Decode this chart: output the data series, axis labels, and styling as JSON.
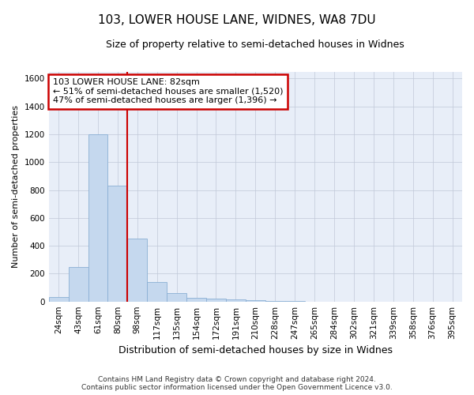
{
  "title": "103, LOWER HOUSE LANE, WIDNES, WA8 7DU",
  "subtitle": "Size of property relative to semi-detached houses in Widnes",
  "xlabel": "Distribution of semi-detached houses by size in Widnes",
  "ylabel": "Number of semi-detached properties",
  "bar_color": "#c5d8ee",
  "bar_edge_color": "#8aafd4",
  "background_color": "#e8eef8",
  "categories": [
    "24sqm",
    "43sqm",
    "61sqm",
    "80sqm",
    "98sqm",
    "117sqm",
    "135sqm",
    "154sqm",
    "172sqm",
    "191sqm",
    "210sqm",
    "228sqm",
    "247sqm",
    "265sqm",
    "284sqm",
    "302sqm",
    "321sqm",
    "339sqm",
    "358sqm",
    "376sqm",
    "395sqm"
  ],
  "values": [
    30,
    250,
    1200,
    830,
    450,
    140,
    60,
    25,
    20,
    15,
    10,
    2,
    2,
    1,
    1,
    0,
    0,
    0,
    0,
    0,
    0
  ],
  "ylim": [
    0,
    1650
  ],
  "yticks": [
    0,
    200,
    400,
    600,
    800,
    1000,
    1200,
    1400,
    1600
  ],
  "annotation_text_line1": "103 LOWER HOUSE LANE: 82sqm",
  "annotation_text_line2": "← 51% of semi-detached houses are smaller (1,520)",
  "annotation_text_line3": "47% of semi-detached houses are larger (1,396) →",
  "annotation_box_color": "#ffffff",
  "annotation_box_edge_color": "#cc0000",
  "vline_color": "#cc0000",
  "vline_x": 3.5,
  "footer_line1": "Contains HM Land Registry data © Crown copyright and database right 2024.",
  "footer_line2": "Contains public sector information licensed under the Open Government Licence v3.0.",
  "grid_color": "#c0c8d8",
  "title_fontsize": 11,
  "subtitle_fontsize": 9,
  "ylabel_fontsize": 8,
  "xlabel_fontsize": 9,
  "tick_fontsize": 7.5,
  "footer_fontsize": 6.5,
  "annotation_fontsize": 8
}
